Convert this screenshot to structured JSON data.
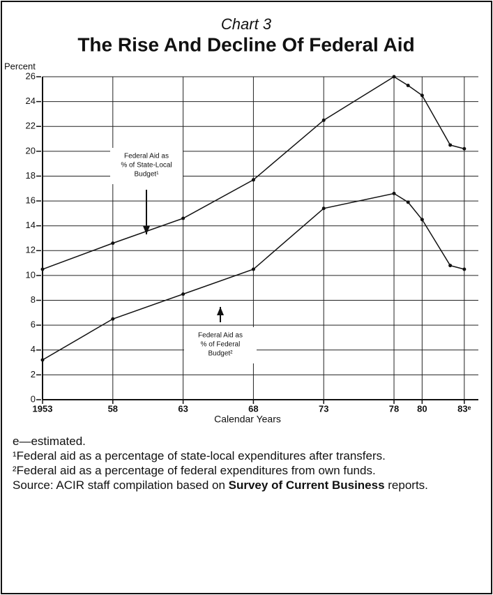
{
  "chart_data": {
    "type": "line",
    "supertitle": "Chart 3",
    "title": "The Rise And Decline Of Federal Aid",
    "y_label": "Percent",
    "x_label": "Calendar Years",
    "x": [
      1953,
      1958,
      1963,
      1968,
      1973,
      1978,
      1979,
      1980,
      1982,
      1983
    ],
    "series": [
      {
        "name": "Federal Aid as % of State-Local Budget¹",
        "color": "#111111",
        "values": [
          10.5,
          12.6,
          14.6,
          17.7,
          22.5,
          26.0,
          25.3,
          24.5,
          20.5,
          20.2
        ]
      },
      {
        "name": "Federal Aid as % of Federal Budget²",
        "color": "#111111",
        "values": [
          3.2,
          6.5,
          8.5,
          10.5,
          15.4,
          16.6,
          15.9,
          14.5,
          10.8,
          10.5
        ]
      }
    ],
    "annotations": [
      {
        "lines": [
          "Federal Aid as",
          "% of State-Local",
          "Budget¹"
        ]
      },
      {
        "lines": [
          "Federal Aid as",
          "% of Federal",
          "Budget²"
        ]
      }
    ],
    "xlim": [
      1953,
      1984
    ],
    "ylim": [
      0,
      26
    ],
    "xticks": [
      1953,
      {
        "value": 1958,
        "label": "58"
      },
      {
        "value": 1963,
        "label": "63"
      },
      {
        "value": 1968,
        "label": "68"
      },
      {
        "value": 1973,
        "label": "73"
      },
      {
        "value": 1978,
        "label": "78"
      },
      {
        "value": 1980,
        "label": "80"
      },
      {
        "value": 1983,
        "label": "83ᵉ"
      }
    ],
    "yticks": [
      0,
      2,
      4,
      6,
      8,
      10,
      12,
      14,
      16,
      18,
      20,
      22,
      24,
      26
    ],
    "grid": true,
    "notes": [
      "e—estimated.",
      "¹Federal aid as a percentage of state-local expenditures after transfers.",
      "²Federal aid as a percentage of federal expenditures from own funds."
    ],
    "source": {
      "before": "Source: ACIR staff compilation based on ",
      "bold": "Survey of Current Business",
      "after": " reports."
    }
  }
}
